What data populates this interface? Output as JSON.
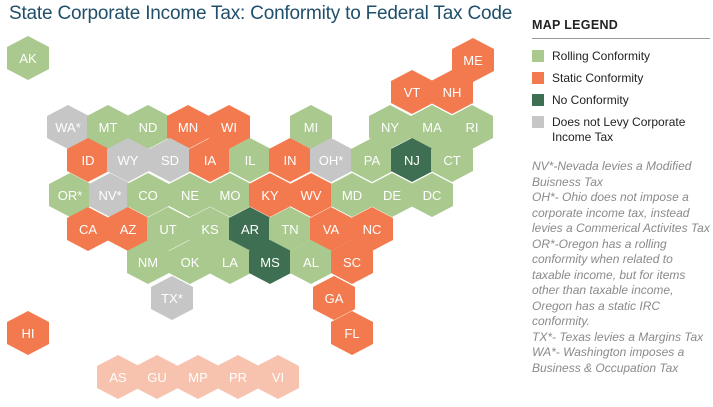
{
  "title": "State Corporate Income Tax: Conformity to Federal Tax Code",
  "colors": {
    "rolling": "#a9c98e",
    "static": "#f37a4e",
    "none": "#3f6f52",
    "nolevy": "#c6c6c6",
    "territory": "#f7c2ae"
  },
  "legend": {
    "title": "MAP LEGEND",
    "items": [
      {
        "label": "Rolling Conformity",
        "category": "rolling"
      },
      {
        "label": "Static Conformity",
        "category": "static"
      },
      {
        "label": "No Conformity",
        "category": "none"
      },
      {
        "label": "Does not Levy Corporate Income Tax",
        "category": "nolevy"
      }
    ],
    "notes": [
      "NV*-Nevada levies a Modified Buisness Tax",
      "OH*- Ohio does not impose a corporate income tax, instead levies a Commerical Activites Tax",
      "OR*-Oregon has a rolling conformity when related to taxable income, but for items other than taxable income, Oregon has a static IRC conformity.",
      "TX*- Texas levies a Margins Tax",
      "WA*- Washington imposes a Business & Occupation Tax"
    ]
  },
  "states": [
    {
      "label": "AK",
      "category": "rolling"
    },
    {
      "label": "ME",
      "category": "static"
    },
    {
      "label": "VT",
      "category": "static"
    },
    {
      "label": "NH",
      "category": "static"
    },
    {
      "label": "WA*",
      "category": "nolevy"
    },
    {
      "label": "MT",
      "category": "rolling"
    },
    {
      "label": "ND",
      "category": "rolling"
    },
    {
      "label": "MN",
      "category": "static"
    },
    {
      "label": "WI",
      "category": "static"
    },
    {
      "label": "MI",
      "category": "rolling"
    },
    {
      "label": "NY",
      "category": "rolling"
    },
    {
      "label": "MA",
      "category": "rolling"
    },
    {
      "label": "RI",
      "category": "rolling"
    },
    {
      "label": "ID",
      "category": "static"
    },
    {
      "label": "WY",
      "category": "nolevy"
    },
    {
      "label": "SD",
      "category": "nolevy"
    },
    {
      "label": "IA",
      "category": "static"
    },
    {
      "label": "IL",
      "category": "rolling"
    },
    {
      "label": "IN",
      "category": "static"
    },
    {
      "label": "OH*",
      "category": "nolevy"
    },
    {
      "label": "PA",
      "category": "rolling"
    },
    {
      "label": "NJ",
      "category": "none"
    },
    {
      "label": "CT",
      "category": "rolling"
    },
    {
      "label": "OR*",
      "category": "rolling"
    },
    {
      "label": "NV*",
      "category": "nolevy"
    },
    {
      "label": "CO",
      "category": "rolling"
    },
    {
      "label": "NE",
      "category": "rolling"
    },
    {
      "label": "MO",
      "category": "rolling"
    },
    {
      "label": "KY",
      "category": "static"
    },
    {
      "label": "WV",
      "category": "static"
    },
    {
      "label": "MD",
      "category": "rolling"
    },
    {
      "label": "DE",
      "category": "rolling"
    },
    {
      "label": "DC",
      "category": "rolling"
    },
    {
      "label": "CA",
      "category": "static"
    },
    {
      "label": "AZ",
      "category": "static"
    },
    {
      "label": "UT",
      "category": "rolling"
    },
    {
      "label": "KS",
      "category": "rolling"
    },
    {
      "label": "AR",
      "category": "none"
    },
    {
      "label": "TN",
      "category": "rolling"
    },
    {
      "label": "VA",
      "category": "static"
    },
    {
      "label": "NC",
      "category": "static"
    },
    {
      "label": "NM",
      "category": "rolling"
    },
    {
      "label": "OK",
      "category": "rolling"
    },
    {
      "label": "LA",
      "category": "rolling"
    },
    {
      "label": "MS",
      "category": "none"
    },
    {
      "label": "AL",
      "category": "rolling"
    },
    {
      "label": "SC",
      "category": "static"
    },
    {
      "label": "TX*",
      "category": "nolevy"
    },
    {
      "label": "GA",
      "category": "static"
    },
    {
      "label": "FL",
      "category": "static"
    },
    {
      "label": "HI",
      "category": "static"
    },
    {
      "label": "AS",
      "category": "territory"
    },
    {
      "label": "GU",
      "category": "territory"
    },
    {
      "label": "MP",
      "category": "territory"
    },
    {
      "label": "PR",
      "category": "territory"
    },
    {
      "label": "VI",
      "category": "territory"
    }
  ]
}
